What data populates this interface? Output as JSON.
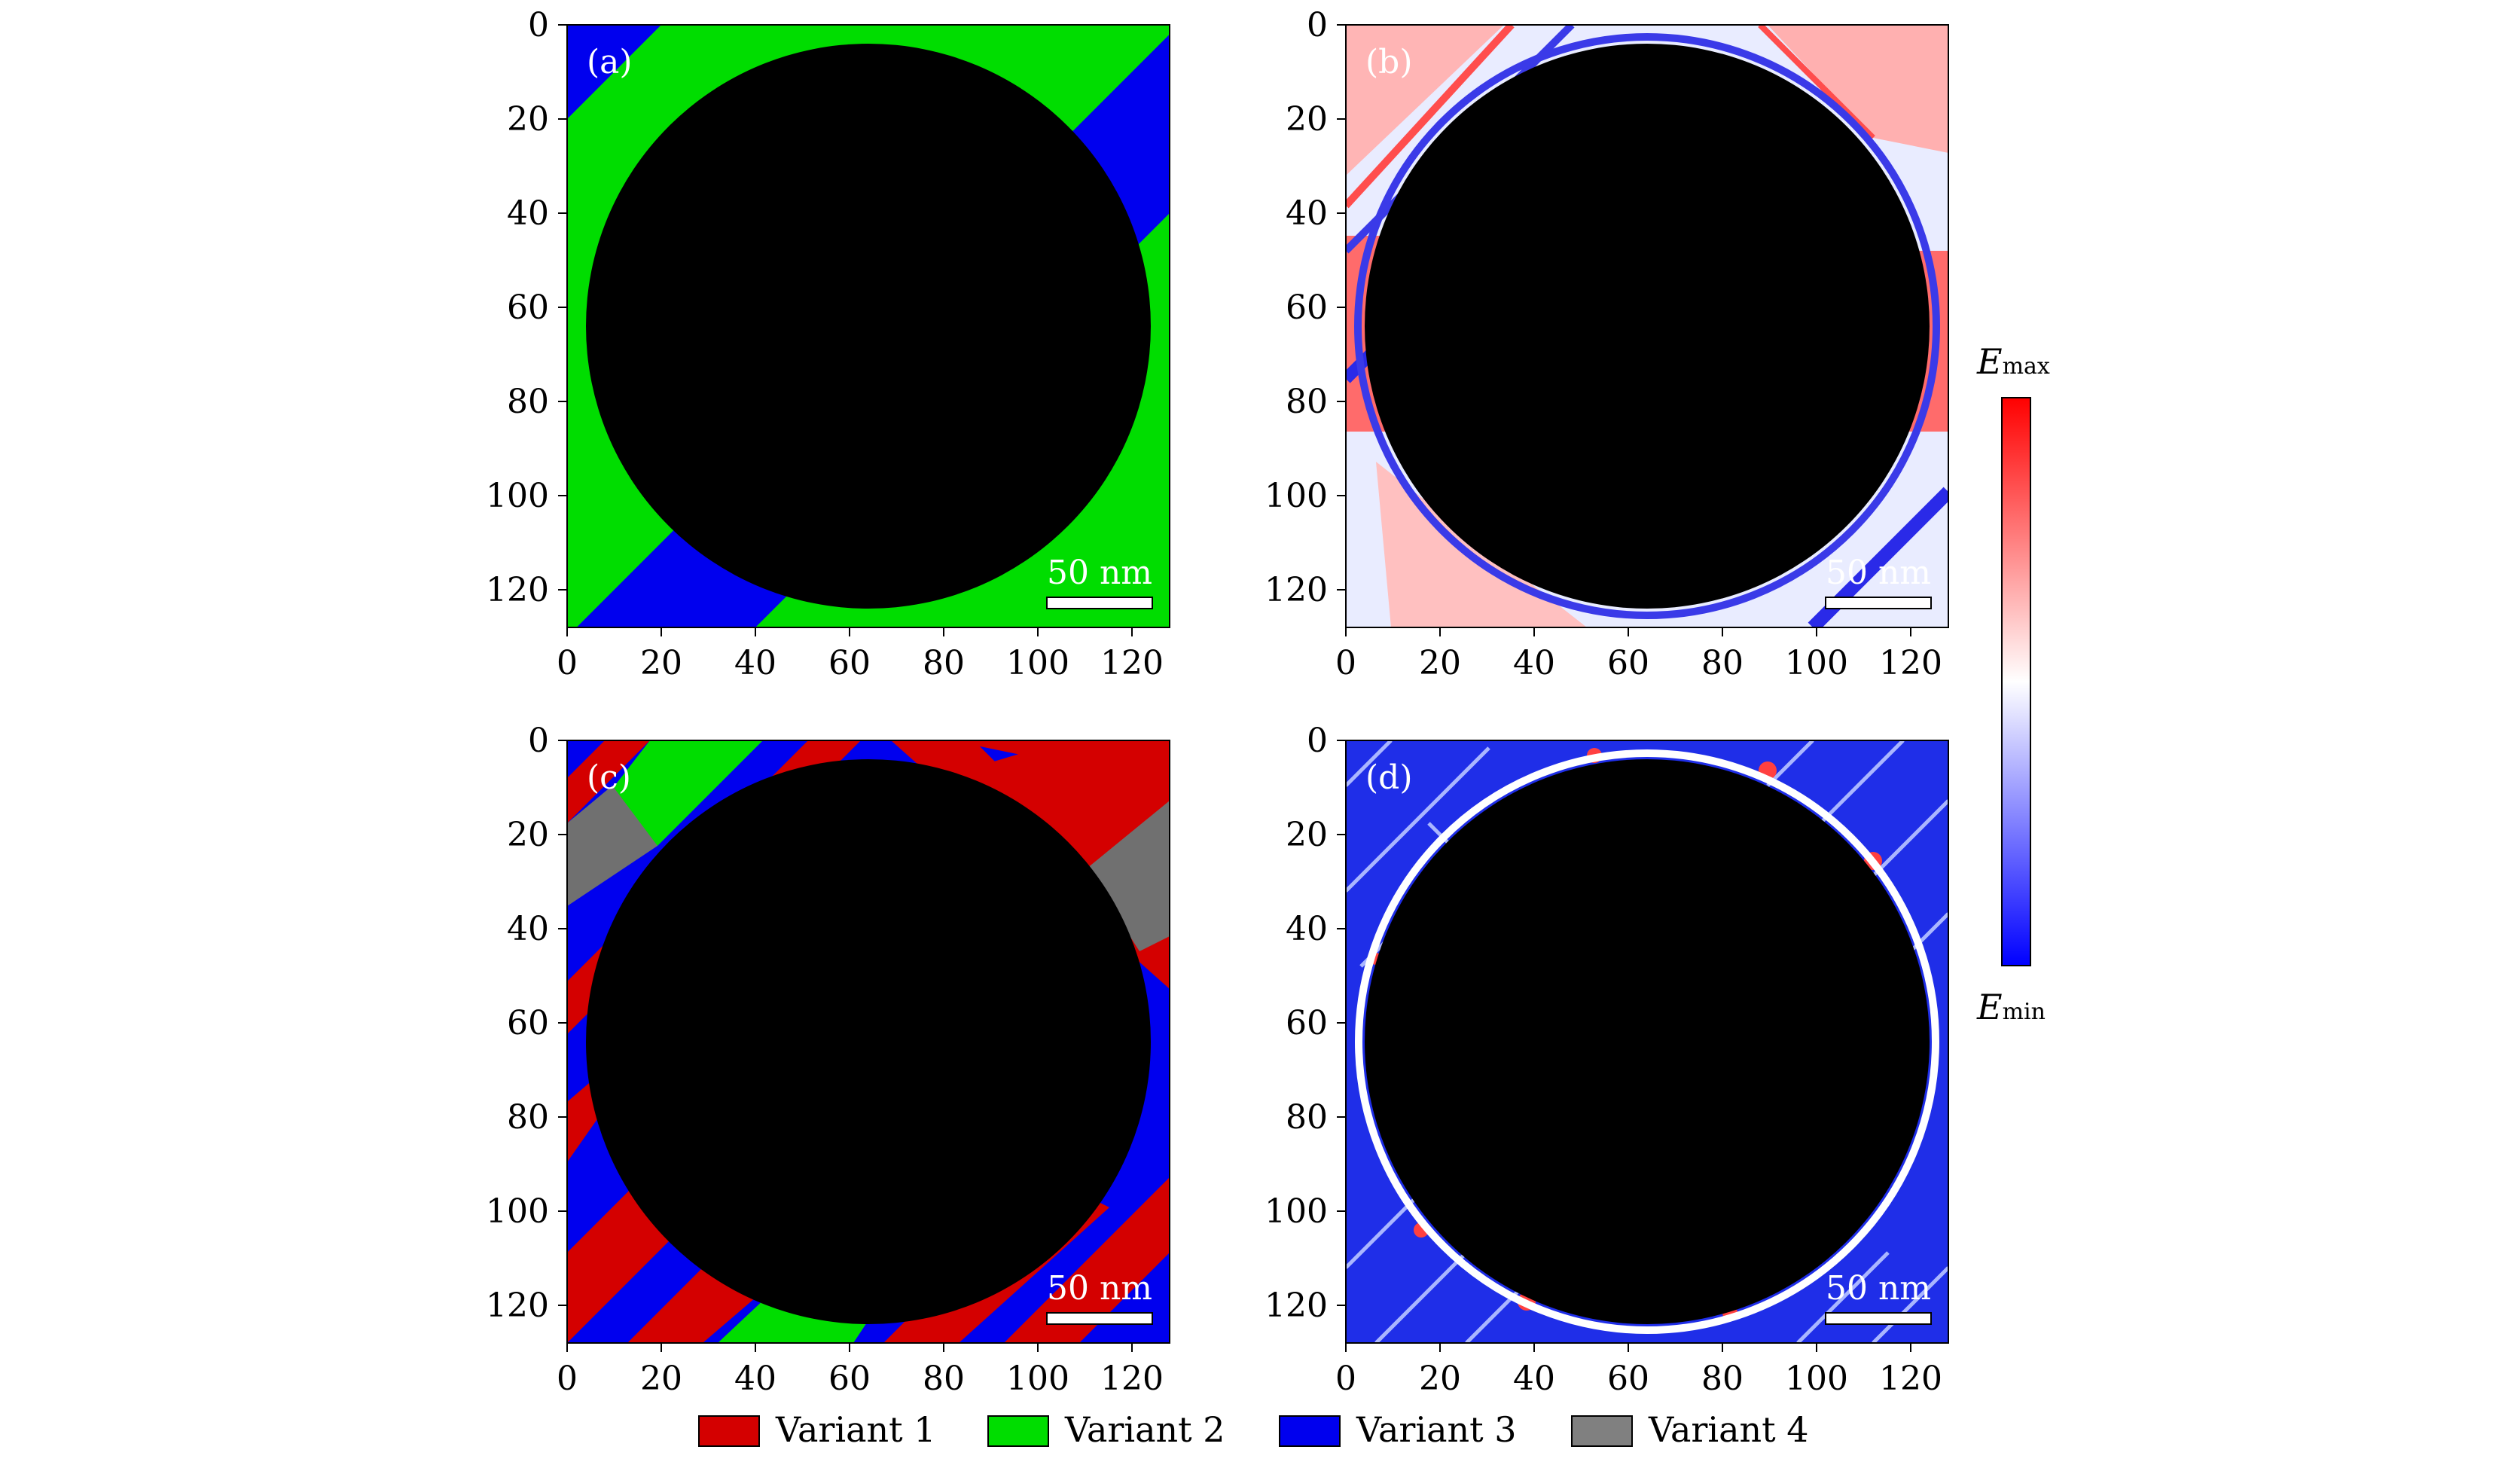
{
  "chart_data": [
    {
      "type": "heatmap",
      "panel_label": "(a)",
      "map": "variant",
      "xlim": [
        0,
        128
      ],
      "ylim": [
        128,
        0
      ],
      "xticks": [
        0,
        20,
        40,
        60,
        80,
        100,
        120
      ],
      "yticks": [
        0,
        20,
        40,
        60,
        80,
        100,
        120
      ],
      "scale_bar": "50 nm",
      "circle": {
        "cx": 64,
        "cy": 64,
        "r": 60
      },
      "bands": [
        {
          "variant": "Variant 3",
          "from": -200,
          "to": 200
        },
        {
          "variant": "Variant 2",
          "from": 20,
          "to": 110
        }
      ]
    },
    {
      "type": "heatmap",
      "panel_label": "(b)",
      "map": "energy",
      "xlim": [
        0,
        128
      ],
      "ylim": [
        128,
        0
      ],
      "xticks": [
        0,
        20,
        40,
        60,
        80,
        100,
        120
      ],
      "yticks": [
        0,
        20,
        40,
        60,
        80,
        100,
        120
      ],
      "scale_bar": "50 nm",
      "circle": {
        "cx": 64,
        "cy": 64,
        "r": 60
      }
    },
    {
      "type": "heatmap",
      "panel_label": "(c)",
      "map": "variant",
      "xlim": [
        0,
        128
      ],
      "ylim": [
        128,
        0
      ],
      "xticks": [
        0,
        20,
        40,
        60,
        80,
        100,
        120
      ],
      "yticks": [
        0,
        20,
        40,
        60,
        80,
        100,
        120
      ],
      "scale_bar": "50 nm",
      "circle": {
        "cx": 64,
        "cy": 64,
        "r": 60
      }
    },
    {
      "type": "heatmap",
      "panel_label": "(d)",
      "map": "energy",
      "xlim": [
        0,
        128
      ],
      "ylim": [
        128,
        0
      ],
      "xticks": [
        0,
        20,
        40,
        60,
        80,
        100,
        120
      ],
      "yticks": [
        0,
        20,
        40,
        60,
        80,
        100,
        120
      ],
      "scale_bar": "50 nm",
      "circle": {
        "cx": 64,
        "cy": 64,
        "r": 60
      }
    }
  ],
  "colorbar": {
    "max_base": "E",
    "max_sub": "max",
    "min_base": "E",
    "min_sub": "min",
    "colors": [
      "#ff0000",
      "#ffffff",
      "#0000ff"
    ]
  },
  "legend": [
    {
      "label": "Variant 1",
      "color": "#d40000"
    },
    {
      "label": "Variant 2",
      "color": "#00dd00"
    },
    {
      "label": "Variant 3",
      "color": "#0000ee"
    },
    {
      "label": "Variant 4",
      "color": "#808080"
    }
  ],
  "colors": {
    "precipitate": "#000000",
    "variant1": "#d40000",
    "variant2": "#00dd00",
    "variant3": "#0000ee",
    "variant4": "#808080",
    "energy_high": "#ff3030",
    "energy_mid": "#ffffff",
    "energy_low": "#1a1aee"
  }
}
